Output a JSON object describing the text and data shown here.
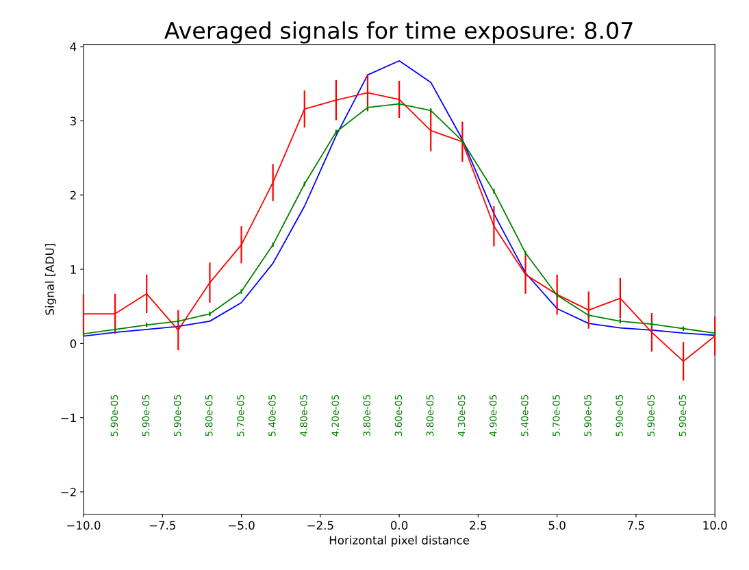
{
  "chart_data": {
    "type": "line",
    "title": "Averaged signals for time exposure: 8.07",
    "xlabel": "Horizontal pixel distance",
    "ylabel": "Signal [ADU]",
    "x": [
      -10,
      -9,
      -8,
      -7,
      -6,
      -5,
      -4,
      -3,
      -2,
      -1,
      0,
      1,
      2,
      3,
      4,
      5,
      6,
      7,
      8,
      9,
      10
    ],
    "series": [
      {
        "color": "#0000ff",
        "values": [
          0.1,
          0.15,
          0.19,
          0.23,
          0.3,
          0.55,
          1.08,
          1.85,
          2.8,
          3.62,
          3.81,
          3.52,
          2.75,
          1.75,
          0.95,
          0.47,
          0.27,
          0.21,
          0.18,
          0.14,
          0.11
        ]
      },
      {
        "color": "#ff0000",
        "values": [
          0.4,
          0.4,
          0.67,
          0.18,
          0.82,
          1.33,
          2.17,
          3.16,
          3.28,
          3.38,
          3.29,
          2.87,
          2.72,
          1.58,
          0.93,
          0.66,
          0.45,
          0.61,
          0.15,
          -0.24,
          0.1
        ],
        "errors": [
          0.27,
          0.27,
          0.26,
          0.27,
          0.27,
          0.25,
          0.25,
          0.25,
          0.27,
          0.25,
          0.25,
          0.28,
          0.27,
          0.27,
          0.26,
          0.27,
          0.25,
          0.27,
          0.26,
          0.26,
          0.26
        ]
      },
      {
        "color": "#008000",
        "values": [
          0.13,
          0.19,
          0.25,
          0.3,
          0.4,
          0.7,
          1.33,
          2.15,
          2.85,
          3.18,
          3.23,
          3.14,
          2.73,
          2.05,
          1.22,
          0.65,
          0.38,
          0.3,
          0.26,
          0.2,
          0.14
        ],
        "errors": [
          0.03,
          0.03,
          0.03,
          0.03,
          0.03,
          0.03,
          0.03,
          0.03,
          0.03,
          0.03,
          0.03,
          0.03,
          0.03,
          0.03,
          0.03,
          0.03,
          0.03,
          0.03,
          0.03,
          0.03,
          0.03
        ]
      }
    ],
    "annotations": [
      "5.90e-05",
      "5.90e-05",
      "5.90e-05",
      "5.80e-05",
      "5.70e-05",
      "5.40e-05",
      "4.80e-05",
      "4.20e-05",
      "3.80e-05",
      "3.60e-05",
      "3.80e-05",
      "4.30e-05",
      "4.90e-05",
      "5.40e-05",
      "5.70e-05",
      "5.90e-05",
      "5.90e-05",
      "5.90e-05",
      "5.90e-05"
    ],
    "xlim": [
      -10,
      10
    ],
    "ylim": [
      -2.3,
      4.03
    ],
    "xticks": [
      {
        "value": -10,
        "label": "−10.0"
      },
      {
        "value": -7.5,
        "label": "−7.5"
      },
      {
        "value": -5,
        "label": "−5.0"
      },
      {
        "value": -2.5,
        "label": "−2.5"
      },
      {
        "value": 0,
        "label": "0.0"
      },
      {
        "value": 2.5,
        "label": "2.5"
      },
      {
        "value": 5,
        "label": "5.0"
      },
      {
        "value": 7.5,
        "label": "7.5"
      },
      {
        "value": 10,
        "label": "10.0"
      }
    ],
    "yticks": [
      {
        "value": -2,
        "label": "−2"
      },
      {
        "value": -1,
        "label": "−1"
      },
      0,
      1,
      2,
      3,
      4
    ],
    "grid": false,
    "legend": false,
    "marker": "none",
    "line_style": "solid"
  }
}
